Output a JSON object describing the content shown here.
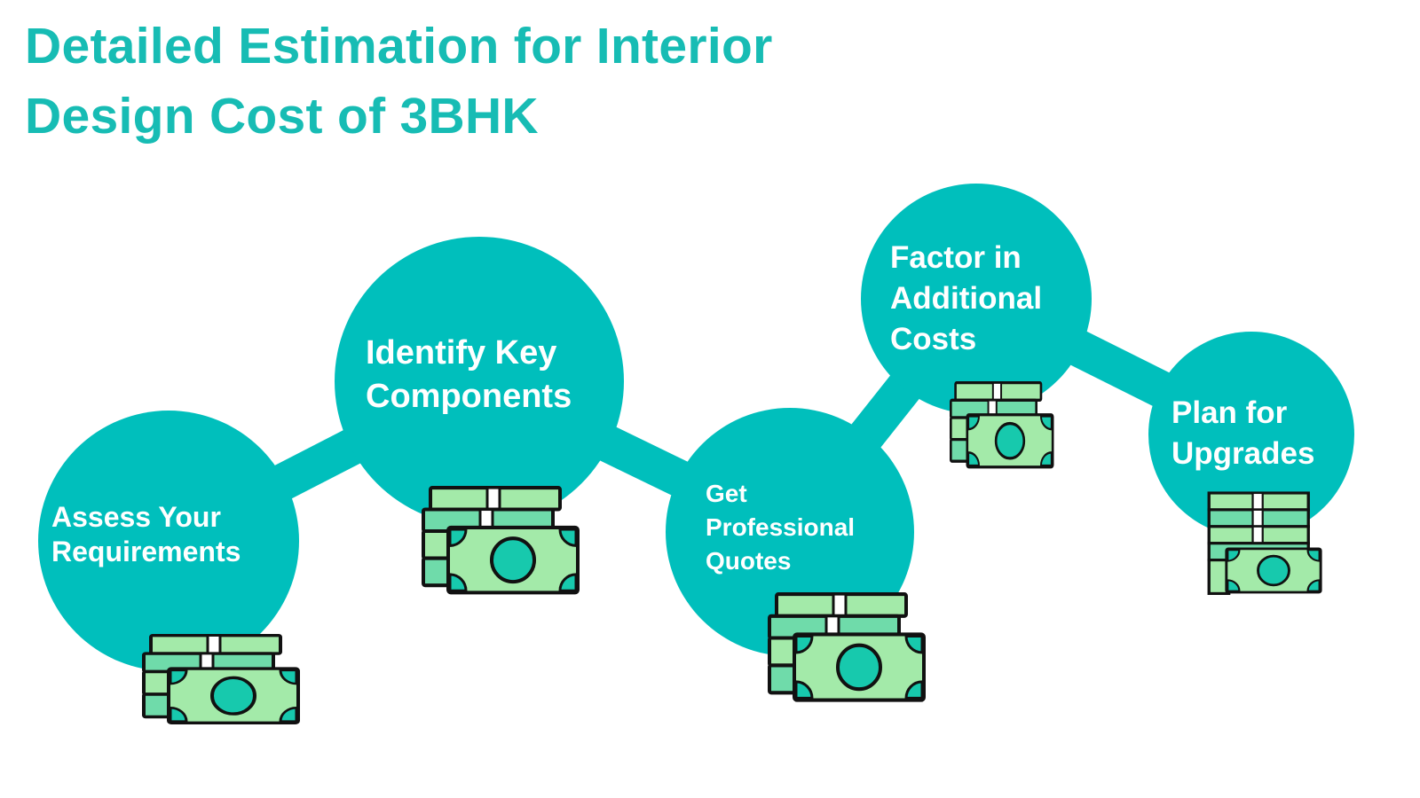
{
  "title": {
    "line1": "Detailed Estimation for Interior",
    "line2": "Design Cost of 3BHK"
  },
  "steps": [
    {
      "lines": [
        "Assess Your",
        "Requirements"
      ]
    },
    {
      "lines": [
        "Identify Key",
        "Components"
      ]
    },
    {
      "lines": [
        "Get",
        "Professional",
        "Quotes"
      ]
    },
    {
      "lines": [
        "Factor in",
        "Additional",
        "Costs"
      ]
    },
    {
      "lines": [
        "Plan for",
        "Upgrades"
      ]
    }
  ],
  "icons": [
    "money-stack-icon"
  ],
  "colors": {
    "accent": "#00bfbc",
    "title": "#17bcb4",
    "bill_light": "#a3eaa9",
    "bill_mid": "#6fdbaa",
    "bill_teal": "#17c9ad"
  }
}
